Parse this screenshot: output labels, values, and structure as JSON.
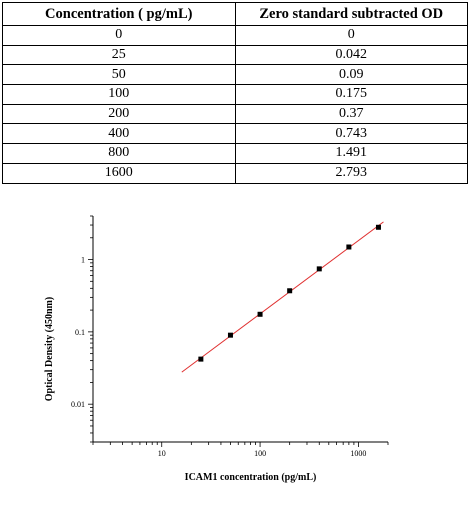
{
  "table": {
    "headers": [
      "Concentration ( pg/mL)",
      "Zero standard subtracted OD"
    ],
    "rows": [
      [
        "0",
        "0"
      ],
      [
        "25",
        "0.042"
      ],
      [
        "50",
        "0.09"
      ],
      [
        "100",
        "0.175"
      ],
      [
        "200",
        "0.37"
      ],
      [
        "400",
        "0.743"
      ],
      [
        "800",
        "1.491"
      ],
      [
        "1600",
        "2.793"
      ]
    ]
  },
  "chart_data": {
    "type": "scatter",
    "xlabel": "ICAM1 concentration (pg/mL)",
    "ylabel": "Optical Density (450nm)",
    "x_scale": "log",
    "y_scale": "log",
    "xlim": [
      2,
      2000
    ],
    "ylim": [
      0.003,
      4
    ],
    "x_ticks": [
      10,
      100,
      1000
    ],
    "x_tick_labels": [
      "10",
      "100",
      "1000"
    ],
    "y_ticks": [
      0.01,
      0.1,
      1
    ],
    "y_tick_labels": [
      "0.01",
      "0.1",
      "1"
    ],
    "series": [
      {
        "x": [
          25,
          50,
          100,
          200,
          400,
          800,
          1600
        ],
        "y": [
          0.042,
          0.09,
          0.175,
          0.37,
          0.743,
          1.491,
          2.793
        ],
        "color": "#000000"
      }
    ],
    "fit_line": {
      "x_start": 16,
      "x_end": 1800,
      "color": "#e03030"
    },
    "grid": false
  }
}
